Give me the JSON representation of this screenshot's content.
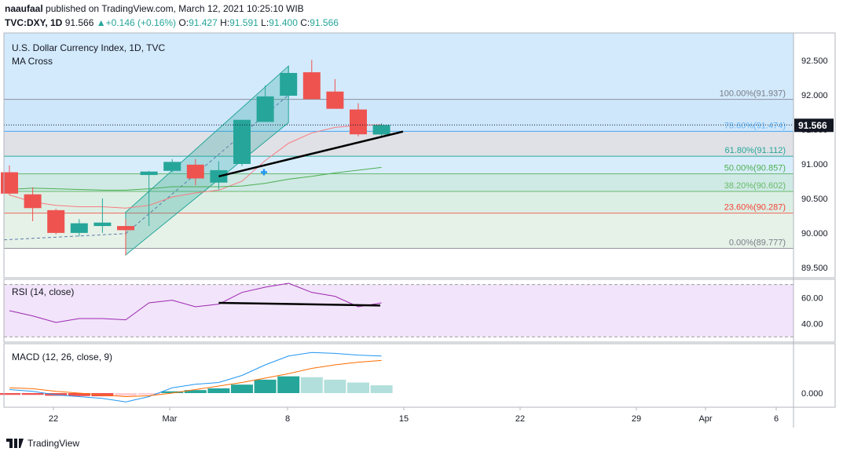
{
  "header": {
    "publisher": "naaufaal",
    "published_text": "published on TradingView.com, March 12, 2021 10:25:10 WIB",
    "symbol": "TVC:DXY, 1D",
    "last": "91.566",
    "change": "+0.146 (+0.16%)",
    "o_label": "O:",
    "o": "91.427",
    "h_label": "H:",
    "h": "91.591",
    "l_label": "L:",
    "l": "91.400",
    "c_label": "C:",
    "c": "91.566"
  },
  "main_pane": {
    "title": "U.S. Dollar Currency Index, 1D, TVC",
    "indicator": "MA Cross"
  },
  "rsi_pane": {
    "title": "RSI (14, close)"
  },
  "macd_pane": {
    "title": "MACD (12, 26, close, 9)"
  },
  "brand": {
    "name": "TradingView"
  },
  "colors": {
    "up": "#26a69a",
    "down": "#ef5350",
    "ma_fast": "#f77c80",
    "ma_slow": "#4caf50",
    "rsi": "#9c27b0",
    "macd": "#2196f3",
    "signal": "#ff6d00"
  },
  "chart_data": [
    {
      "type": "candlestick",
      "title": "U.S. Dollar Currency Index, 1D, TVC",
      "x": [
        "2021-02-18",
        "2021-02-19",
        "2021-02-22",
        "2021-02-23",
        "2021-02-24",
        "2021-02-25",
        "2021-02-26",
        "2021-03-01",
        "2021-03-02",
        "2021-03-03",
        "2021-03-04",
        "2021-03-05",
        "2021-03-08",
        "2021-03-09",
        "2021-03-10",
        "2021-03-11",
        "2021-03-12"
      ],
      "open": [
        90.88,
        90.56,
        90.33,
        90.0,
        90.1,
        90.1,
        90.84,
        90.9,
        90.99,
        90.73,
        91.0,
        91.61,
        91.99,
        92.33,
        92.05,
        91.79,
        91.427
      ],
      "high": [
        90.98,
        90.66,
        90.35,
        90.2,
        90.5,
        90.2,
        90.9,
        91.07,
        91.07,
        91.04,
        91.64,
        92.14,
        92.42,
        92.51,
        92.23,
        91.88,
        91.591
      ],
      "low": [
        90.55,
        90.17,
        89.98,
        89.95,
        90.0,
        89.68,
        90.1,
        90.88,
        90.69,
        90.63,
        90.97,
        91.63,
        91.96,
        91.94,
        91.81,
        91.4,
        91.4
      ],
      "close": [
        90.57,
        90.36,
        90.0,
        90.14,
        90.15,
        90.04,
        90.89,
        91.03,
        90.79,
        90.91,
        91.64,
        91.98,
        92.32,
        91.94,
        91.8,
        91.43,
        91.566
      ],
      "ma_fast": [
        90.55,
        90.45,
        90.4,
        90.38,
        90.38,
        90.36,
        90.4,
        90.52,
        90.58,
        90.62,
        90.75,
        91.05,
        91.3,
        91.45,
        91.53,
        91.56,
        91.57
      ],
      "ma_slow": [
        90.63,
        90.65,
        90.64,
        90.63,
        90.62,
        90.62,
        90.64,
        90.67,
        90.67,
        90.67,
        90.68,
        90.72,
        90.78,
        90.82,
        90.87,
        90.91,
        90.95
      ],
      "fib_levels": [
        {
          "label": "100.00%(91.937)",
          "value": 91.937
        },
        {
          "label": "78.60%(91.474)",
          "value": 91.474
        },
        {
          "label": "61.80%(91.112)",
          "value": 91.112
        },
        {
          "label": "50.00%(90.857)",
          "value": 90.857
        },
        {
          "label": "38.20%(90.602)",
          "value": 90.602
        },
        {
          "label": "23.60%(90.287)",
          "value": 90.287
        },
        {
          "label": "0.00%(89.777)",
          "value": 89.777
        }
      ],
      "y_ticks": [
        "92.500",
        "92.000",
        "91.500",
        "91.000",
        "90.500",
        "90.000",
        "89.500"
      ],
      "y_tick_values": [
        92.5,
        92.0,
        91.5,
        91.0,
        90.5,
        90.0,
        89.5
      ],
      "ylim": [
        89.35,
        92.9
      ],
      "last_price_label": "91.566",
      "last_price": 91.566,
      "x_ticks": [
        "22",
        "Mar",
        "8",
        "15",
        "22",
        "29",
        "Apr",
        "6"
      ]
    },
    {
      "type": "line",
      "title": "RSI (14, close)",
      "values": [
        50,
        46,
        41,
        44,
        44,
        43,
        56,
        58,
        53,
        55,
        64,
        68,
        71,
        64,
        61,
        53,
        56
      ],
      "bands": [
        70,
        30
      ],
      "y_ticks": [
        "60.00",
        "40.00"
      ],
      "y_tick_values": [
        60,
        40
      ],
      "ylim": [
        26,
        74
      ]
    },
    {
      "type": "bar",
      "title": "MACD (12, 26, close, 9)",
      "histogram": [
        -0.01,
        -0.01,
        -0.015,
        -0.017,
        -0.018,
        -0.015,
        -0.01,
        0.01,
        0.017,
        0.027,
        0.048,
        0.076,
        0.095,
        0.09,
        0.076,
        0.06,
        0.044
      ],
      "macd": [
        0.02,
        0.01,
        -0.01,
        -0.02,
        -0.03,
        -0.05,
        -0.02,
        0.03,
        0.05,
        0.06,
        0.1,
        0.16,
        0.21,
        0.23,
        0.225,
        0.215,
        0.21
      ],
      "signal": [
        0.03,
        0.025,
        0.01,
        0.0,
        -0.01,
        -0.02,
        -0.015,
        0.0,
        0.02,
        0.04,
        0.06,
        0.085,
        0.11,
        0.14,
        0.16,
        0.175,
        0.185
      ],
      "y_ticks": [
        "0.000"
      ],
      "y_tick_values": [
        0
      ],
      "ylim": [
        -0.08,
        0.28
      ]
    }
  ]
}
